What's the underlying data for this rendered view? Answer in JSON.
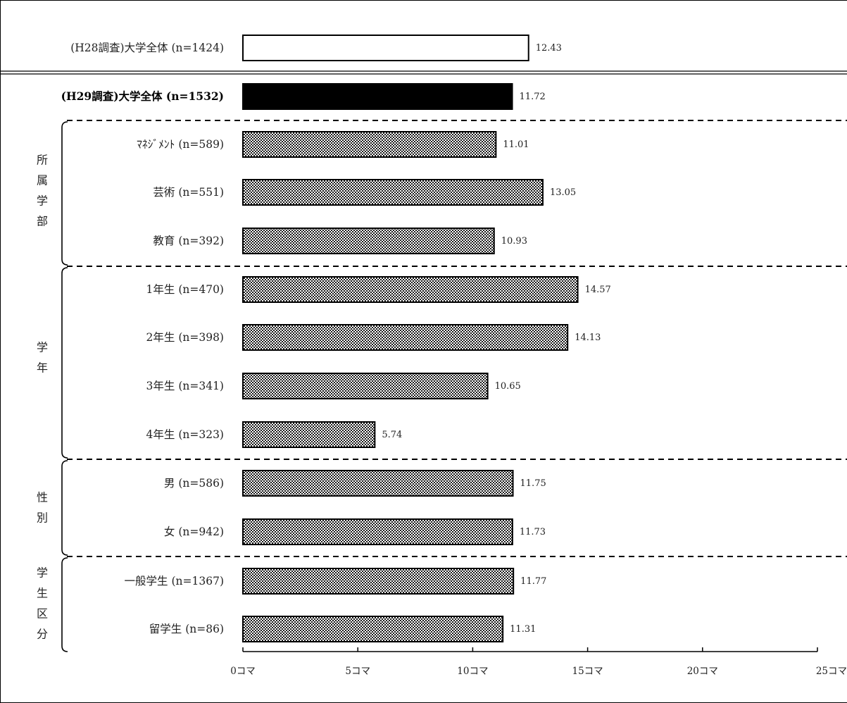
{
  "chart_data": {
    "type": "bar",
    "orientation": "horizontal",
    "xlim": [
      0,
      25
    ],
    "x_ticks": [
      "0コマ",
      "5コマ",
      "10コマ",
      "15コマ",
      "20コマ",
      "25コマ"
    ],
    "x_tick_values": [
      0,
      5,
      10,
      15,
      20,
      25
    ],
    "bars": [
      {
        "label": "(H28調査)大学全体 (n=1424)",
        "value": 12.43,
        "value_label": "12.43",
        "style": "white"
      },
      {
        "label": "(H29調査)大学全体 (n=1532)",
        "value": 11.72,
        "value_label": "11.72",
        "style": "black"
      },
      {
        "label": "ﾏﾈｼﾞﾒﾝﾄ (n=589)",
        "value": 11.01,
        "value_label": "11.01",
        "style": "pattern"
      },
      {
        "label": "芸術 (n=551)",
        "value": 13.05,
        "value_label": "13.05",
        "style": "pattern"
      },
      {
        "label": "教育 (n=392)",
        "value": 10.93,
        "value_label": "10.93",
        "style": "pattern"
      },
      {
        "label": "1年生 (n=470)",
        "value": 14.57,
        "value_label": "14.57",
        "style": "pattern"
      },
      {
        "label": "2年生 (n=398)",
        "value": 14.13,
        "value_label": "14.13",
        "style": "pattern"
      },
      {
        "label": "3年生 (n=341)",
        "value": 10.65,
        "value_label": "10.65",
        "style": "pattern"
      },
      {
        "label": "4年生 (n=323)",
        "value": 5.74,
        "value_label": "5.74",
        "style": "pattern"
      },
      {
        "label": "男 (n=586)",
        "value": 11.75,
        "value_label": "11.75",
        "style": "pattern"
      },
      {
        "label": "女 (n=942)",
        "value": 11.73,
        "value_label": "11.73",
        "style": "pattern"
      },
      {
        "label": "一般学生 (n=1367)",
        "value": 11.77,
        "value_label": "11.77",
        "style": "pattern"
      },
      {
        "label": "留学生 (n=86)",
        "value": 11.31,
        "value_label": "11.31",
        "style": "pattern"
      }
    ],
    "groups": [
      {
        "name": "所属学部",
        "chars": [
          "所",
          "属",
          "学",
          "部"
        ],
        "from": 2,
        "to": 4
      },
      {
        "name": "学年",
        "chars": [
          "学",
          "年"
        ],
        "from": 5,
        "to": 8
      },
      {
        "name": "性別",
        "chars": [
          "性",
          "別"
        ],
        "from": 9,
        "to": 10
      },
      {
        "name": "学生区分",
        "chars": [
          "学",
          "生",
          "区",
          "分"
        ],
        "from": 11,
        "to": 12
      }
    ],
    "colors": {
      "black_bar": "#000000",
      "white_bar": "#ffffff",
      "pattern_dot": "#000000"
    }
  }
}
